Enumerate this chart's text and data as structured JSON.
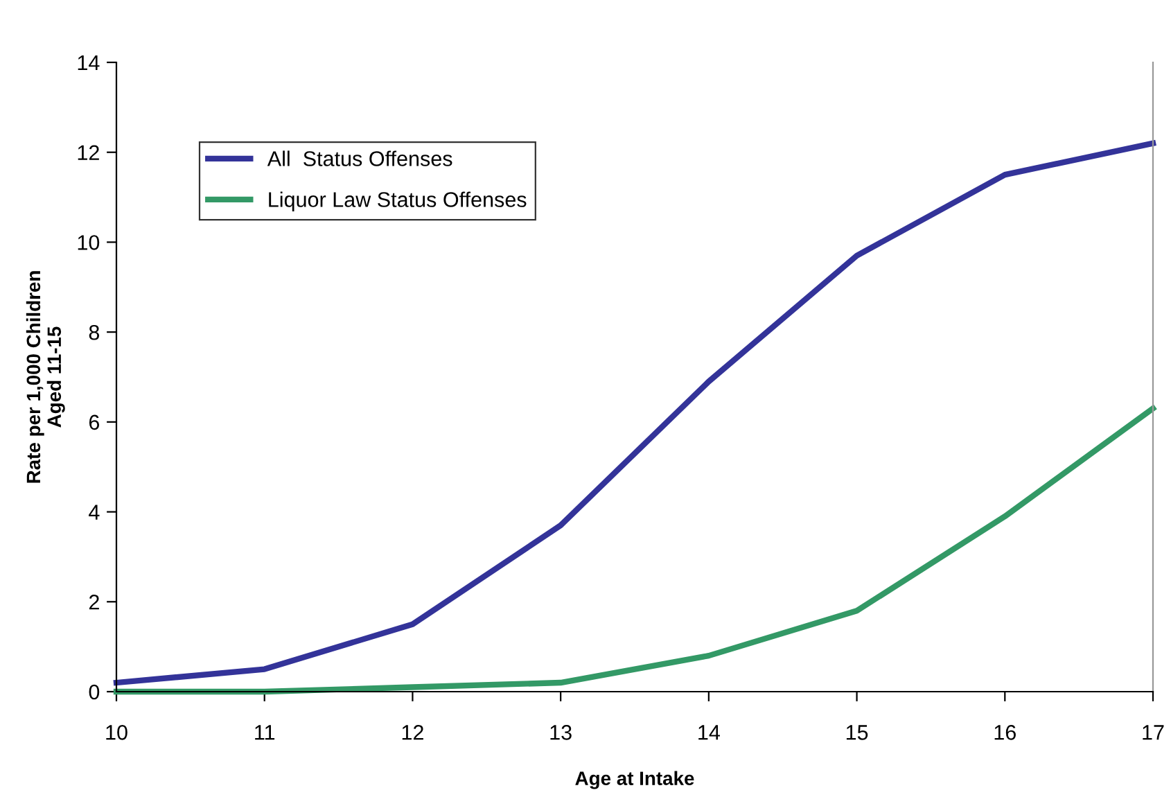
{
  "chart_data": {
    "type": "line",
    "xlabel": "Age at Intake",
    "ylabel": "Rate per 1,000 Children\nAged 11-15",
    "x": [
      10,
      11,
      12,
      13,
      14,
      15,
      16,
      17
    ],
    "series": [
      {
        "name": "All  Status Offenses",
        "color": "#333399",
        "values": [
          0.2,
          0.5,
          1.5,
          3.7,
          6.9,
          9.7,
          11.5,
          12.2
        ]
      },
      {
        "name": "Liquor Law Status Offenses",
        "color": "#339966",
        "values": [
          0.0,
          0.0,
          0.1,
          0.2,
          0.8,
          1.8,
          3.9,
          6.3
        ]
      }
    ],
    "xlim": [
      10,
      17
    ],
    "xticks": [
      10,
      11,
      12,
      13,
      14,
      15,
      16,
      17
    ],
    "ylim": [
      0,
      14
    ],
    "yticks": [
      0,
      2,
      4,
      6,
      8,
      10,
      12,
      14
    ],
    "grid": false,
    "legend": "top left",
    "marker": "none",
    "line_style": "solid"
  }
}
